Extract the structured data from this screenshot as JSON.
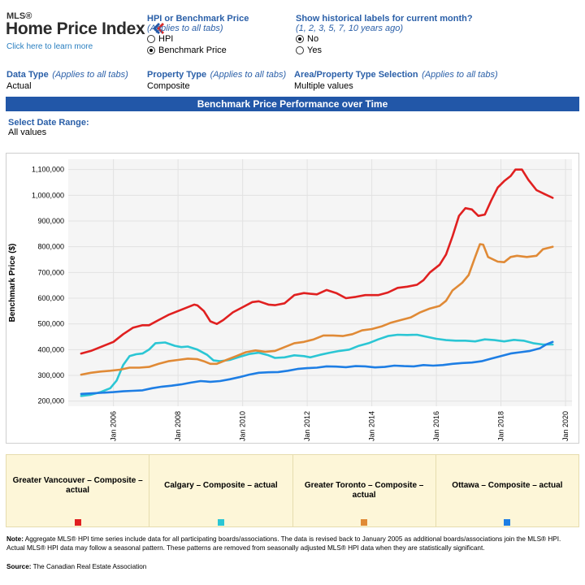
{
  "logo": {
    "mls": "MLS®",
    "title": "Home Price Index",
    "link": "Click here to learn more"
  },
  "controls": {
    "hpi_or_benchmark": {
      "title": "HPI or Benchmark Price",
      "subtitle": "(Applies to all tabs)",
      "options": [
        "HPI",
        "Benchmark Price"
      ],
      "selected": 1
    },
    "historical_labels": {
      "title": "Show historical labels for current month?",
      "subtitle": "(1, 2, 3, 5, 7, 10 years ago)",
      "options": [
        "No",
        "Yes"
      ],
      "selected": 0
    },
    "data_type": {
      "title": "Data Type",
      "subtitle": "(Applies to all tabs)",
      "value": "Actual"
    },
    "property_type": {
      "title": "Property Type",
      "subtitle": "(Applies to all tabs)",
      "value": "Composite"
    },
    "area_selection": {
      "title": "Area/Property Type Selection",
      "subtitle": "(Applies to all tabs)",
      "value": "Multiple values"
    }
  },
  "banner": "Benchmark Price Performance over Time",
  "date_range": {
    "title": "Select Date Range:",
    "value": "All values"
  },
  "chart_data": {
    "type": "line",
    "ylabel": "Benchmark Price ($)",
    "xlabel": "",
    "xlim": [
      2004.6,
      2020.2
    ],
    "ylim": [
      180000,
      1140000
    ],
    "yticks": [
      200000,
      300000,
      400000,
      500000,
      600000,
      700000,
      800000,
      900000,
      1000000,
      1100000
    ],
    "ytick_labels": [
      "200,000",
      "300,000",
      "400,000",
      "500,000",
      "600,000",
      "700,000",
      "800,000",
      "900,000",
      "1,000,000",
      "1,100,000"
    ],
    "xticks": [
      2006,
      2008,
      2010,
      2012,
      2014,
      2016,
      2018,
      2020
    ],
    "xtick_labels": [
      "Jan 2006",
      "Jan 2008",
      "Jan 2010",
      "Jan 2012",
      "Jan 2014",
      "Jan 2016",
      "Jan 2018",
      "Jan 2020"
    ],
    "grid": true,
    "series": [
      {
        "name": "Greater Vancouver – Composite – actual",
        "color": "#e02020",
        "points": [
          [
            2005.0,
            385000
          ],
          [
            2005.3,
            395000
          ],
          [
            2005.7,
            415000
          ],
          [
            2006.0,
            430000
          ],
          [
            2006.3,
            460000
          ],
          [
            2006.6,
            485000
          ],
          [
            2006.9,
            495000
          ],
          [
            2007.1,
            495000
          ],
          [
            2007.4,
            515000
          ],
          [
            2007.7,
            535000
          ],
          [
            2008.0,
            550000
          ],
          [
            2008.3,
            565000
          ],
          [
            2008.5,
            575000
          ],
          [
            2008.6,
            572000
          ],
          [
            2008.8,
            550000
          ],
          [
            2009.0,
            510000
          ],
          [
            2009.2,
            500000
          ],
          [
            2009.4,
            515000
          ],
          [
            2009.7,
            545000
          ],
          [
            2010.0,
            565000
          ],
          [
            2010.3,
            585000
          ],
          [
            2010.5,
            588000
          ],
          [
            2010.8,
            575000
          ],
          [
            2011.0,
            573000
          ],
          [
            2011.3,
            580000
          ],
          [
            2011.6,
            612000
          ],
          [
            2011.9,
            620000
          ],
          [
            2012.1,
            617000
          ],
          [
            2012.3,
            615000
          ],
          [
            2012.6,
            632000
          ],
          [
            2012.9,
            620000
          ],
          [
            2013.2,
            600000
          ],
          [
            2013.5,
            605000
          ],
          [
            2013.8,
            612000
          ],
          [
            2014.2,
            612000
          ],
          [
            2014.5,
            622000
          ],
          [
            2014.8,
            640000
          ],
          [
            2015.1,
            645000
          ],
          [
            2015.4,
            652000
          ],
          [
            2015.6,
            670000
          ],
          [
            2015.8,
            700000
          ],
          [
            2016.1,
            730000
          ],
          [
            2016.3,
            770000
          ],
          [
            2016.5,
            840000
          ],
          [
            2016.7,
            920000
          ],
          [
            2016.9,
            950000
          ],
          [
            2017.1,
            945000
          ],
          [
            2017.3,
            920000
          ],
          [
            2017.5,
            925000
          ],
          [
            2017.7,
            980000
          ],
          [
            2017.9,
            1030000
          ],
          [
            2018.1,
            1055000
          ],
          [
            2018.3,
            1075000
          ],
          [
            2018.45,
            1100000
          ],
          [
            2018.65,
            1100000
          ],
          [
            2018.85,
            1060000
          ],
          [
            2019.1,
            1020000
          ],
          [
            2019.35,
            1005000
          ],
          [
            2019.6,
            990000
          ]
        ]
      },
      {
        "name": "Calgary – Composite – actual",
        "color": "#2bc6d4",
        "points": [
          [
            2005.0,
            220000
          ],
          [
            2005.3,
            225000
          ],
          [
            2005.6,
            235000
          ],
          [
            2005.9,
            250000
          ],
          [
            2006.1,
            280000
          ],
          [
            2006.3,
            340000
          ],
          [
            2006.5,
            375000
          ],
          [
            2006.7,
            382000
          ],
          [
            2006.9,
            385000
          ],
          [
            2007.1,
            400000
          ],
          [
            2007.3,
            425000
          ],
          [
            2007.6,
            428000
          ],
          [
            2007.9,
            415000
          ],
          [
            2008.1,
            410000
          ],
          [
            2008.3,
            412000
          ],
          [
            2008.6,
            400000
          ],
          [
            2008.9,
            380000
          ],
          [
            2009.1,
            358000
          ],
          [
            2009.3,
            355000
          ],
          [
            2009.6,
            360000
          ],
          [
            2009.9,
            372000
          ],
          [
            2010.2,
            383000
          ],
          [
            2010.5,
            388000
          ],
          [
            2010.8,
            378000
          ],
          [
            2011.0,
            368000
          ],
          [
            2011.3,
            370000
          ],
          [
            2011.6,
            378000
          ],
          [
            2011.9,
            375000
          ],
          [
            2012.1,
            370000
          ],
          [
            2012.4,
            380000
          ],
          [
            2012.7,
            388000
          ],
          [
            2013.0,
            395000
          ],
          [
            2013.3,
            400000
          ],
          [
            2013.6,
            415000
          ],
          [
            2013.9,
            425000
          ],
          [
            2014.2,
            440000
          ],
          [
            2014.5,
            453000
          ],
          [
            2014.8,
            458000
          ],
          [
            2015.1,
            457000
          ],
          [
            2015.4,
            458000
          ],
          [
            2015.7,
            450000
          ],
          [
            2016.0,
            442000
          ],
          [
            2016.3,
            437000
          ],
          [
            2016.6,
            435000
          ],
          [
            2016.9,
            435000
          ],
          [
            2017.2,
            432000
          ],
          [
            2017.5,
            440000
          ],
          [
            2017.8,
            437000
          ],
          [
            2018.1,
            432000
          ],
          [
            2018.4,
            438000
          ],
          [
            2018.7,
            435000
          ],
          [
            2019.0,
            425000
          ],
          [
            2019.3,
            420000
          ],
          [
            2019.6,
            420000
          ]
        ]
      },
      {
        "name": "Greater Toronto – Composite – actual",
        "color": "#e08a36",
        "points": [
          [
            2005.0,
            303000
          ],
          [
            2005.3,
            310000
          ],
          [
            2005.6,
            315000
          ],
          [
            2005.9,
            318000
          ],
          [
            2006.2,
            322000
          ],
          [
            2006.5,
            330000
          ],
          [
            2006.8,
            330000
          ],
          [
            2007.1,
            333000
          ],
          [
            2007.4,
            345000
          ],
          [
            2007.7,
            355000
          ],
          [
            2008.0,
            360000
          ],
          [
            2008.3,
            365000
          ],
          [
            2008.6,
            363000
          ],
          [
            2008.8,
            355000
          ],
          [
            2009.0,
            345000
          ],
          [
            2009.2,
            345000
          ],
          [
            2009.5,
            360000
          ],
          [
            2009.8,
            375000
          ],
          [
            2010.1,
            390000
          ],
          [
            2010.4,
            397000
          ],
          [
            2010.7,
            392000
          ],
          [
            2011.0,
            395000
          ],
          [
            2011.3,
            410000
          ],
          [
            2011.6,
            425000
          ],
          [
            2011.9,
            430000
          ],
          [
            2012.2,
            440000
          ],
          [
            2012.5,
            455000
          ],
          [
            2012.8,
            455000
          ],
          [
            2013.1,
            453000
          ],
          [
            2013.4,
            460000
          ],
          [
            2013.7,
            475000
          ],
          [
            2014.0,
            480000
          ],
          [
            2014.3,
            490000
          ],
          [
            2014.6,
            505000
          ],
          [
            2014.9,
            515000
          ],
          [
            2015.2,
            525000
          ],
          [
            2015.5,
            545000
          ],
          [
            2015.8,
            560000
          ],
          [
            2016.1,
            570000
          ],
          [
            2016.3,
            590000
          ],
          [
            2016.5,
            630000
          ],
          [
            2016.8,
            660000
          ],
          [
            2017.0,
            690000
          ],
          [
            2017.2,
            760000
          ],
          [
            2017.35,
            810000
          ],
          [
            2017.45,
            808000
          ],
          [
            2017.6,
            760000
          ],
          [
            2017.9,
            742000
          ],
          [
            2018.1,
            740000
          ],
          [
            2018.3,
            760000
          ],
          [
            2018.5,
            765000
          ],
          [
            2018.8,
            760000
          ],
          [
            2019.1,
            765000
          ],
          [
            2019.3,
            790000
          ],
          [
            2019.6,
            800000
          ]
        ]
      },
      {
        "name": "Ottawa – Composite – actual",
        "color": "#1e7ee4",
        "points": [
          [
            2005.0,
            228000
          ],
          [
            2005.3,
            230000
          ],
          [
            2005.6,
            232000
          ],
          [
            2006.0,
            235000
          ],
          [
            2006.3,
            238000
          ],
          [
            2006.6,
            240000
          ],
          [
            2006.9,
            242000
          ],
          [
            2007.2,
            250000
          ],
          [
            2007.5,
            256000
          ],
          [
            2007.8,
            260000
          ],
          [
            2008.1,
            265000
          ],
          [
            2008.4,
            272000
          ],
          [
            2008.7,
            278000
          ],
          [
            2009.0,
            275000
          ],
          [
            2009.3,
            278000
          ],
          [
            2009.6,
            285000
          ],
          [
            2009.9,
            293000
          ],
          [
            2010.2,
            303000
          ],
          [
            2010.5,
            310000
          ],
          [
            2010.8,
            312000
          ],
          [
            2011.1,
            313000
          ],
          [
            2011.4,
            318000
          ],
          [
            2011.7,
            325000
          ],
          [
            2012.0,
            328000
          ],
          [
            2012.3,
            330000
          ],
          [
            2012.6,
            335000
          ],
          [
            2012.9,
            334000
          ],
          [
            2013.2,
            332000
          ],
          [
            2013.5,
            336000
          ],
          [
            2013.8,
            335000
          ],
          [
            2014.1,
            331000
          ],
          [
            2014.4,
            333000
          ],
          [
            2014.7,
            338000
          ],
          [
            2015.0,
            336000
          ],
          [
            2015.3,
            335000
          ],
          [
            2015.6,
            340000
          ],
          [
            2015.9,
            338000
          ],
          [
            2016.2,
            340000
          ],
          [
            2016.5,
            345000
          ],
          [
            2016.8,
            348000
          ],
          [
            2017.1,
            350000
          ],
          [
            2017.4,
            355000
          ],
          [
            2017.7,
            365000
          ],
          [
            2018.0,
            375000
          ],
          [
            2018.3,
            385000
          ],
          [
            2018.6,
            390000
          ],
          [
            2018.9,
            395000
          ],
          [
            2019.2,
            405000
          ],
          [
            2019.4,
            420000
          ],
          [
            2019.6,
            430000
          ]
        ]
      }
    ]
  },
  "legend": [
    {
      "label": "Greater Vancouver – Composite – actual",
      "color": "#e02020"
    },
    {
      "label": "Calgary – Composite – actual",
      "color": "#2bc6d4"
    },
    {
      "label": "Greater Toronto – Composite – actual",
      "color": "#e08a36"
    },
    {
      "label": "Ottawa – Composite – actual",
      "color": "#1e7ee4"
    }
  ],
  "note": {
    "label": "Note:",
    "text": "Aggregate MLS® HPI time series include data for all participating boards/associations. The data is revised back to January 2005 as additional boards/associations join the MLS® HPI. Actual MLS® HPI data may follow a seasonal pattern. These patterns are removed from seasonally adjusted MLS® HPI data when they are statistically significant."
  },
  "source": {
    "label": "Source:",
    "text": "The Canadian Real Estate Association"
  }
}
